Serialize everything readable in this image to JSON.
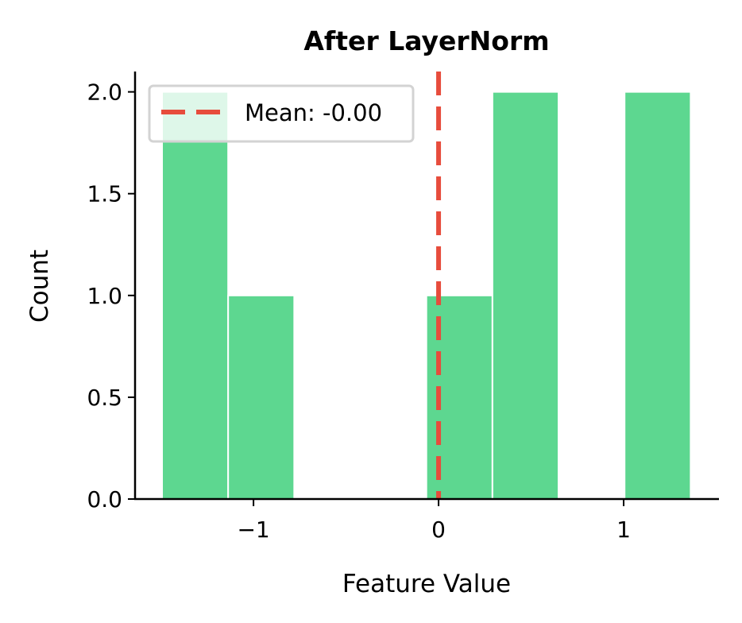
{
  "chart_data": {
    "type": "bar",
    "title": "After LayerNorm",
    "xlabel": "Feature Value",
    "ylabel": "Count",
    "xlim": [
      -1.64,
      1.515
    ],
    "ylim": [
      0,
      2.1
    ],
    "xticks": [
      -1,
      0,
      1
    ],
    "xtick_labels": [
      "−1",
      "0",
      "1"
    ],
    "yticks": [
      0,
      0.5,
      1,
      1.5,
      2
    ],
    "ytick_labels": [
      "0.0",
      "0.5",
      "1.0",
      "1.5",
      "2.0"
    ],
    "bin_edges": [
      -1.494,
      -1.137,
      -0.78,
      -0.423,
      -0.066,
      0.291,
      0.648,
      1.005,
      1.362
    ],
    "counts": [
      2,
      1,
      0,
      0,
      1,
      2,
      0,
      2
    ],
    "bar_color": "#58D68D",
    "mean": {
      "value": 0.0,
      "label": "Mean: -0.00",
      "color": "#E74C3C",
      "style": "dashed"
    },
    "legend_placement": "upper-left",
    "grid": false
  }
}
